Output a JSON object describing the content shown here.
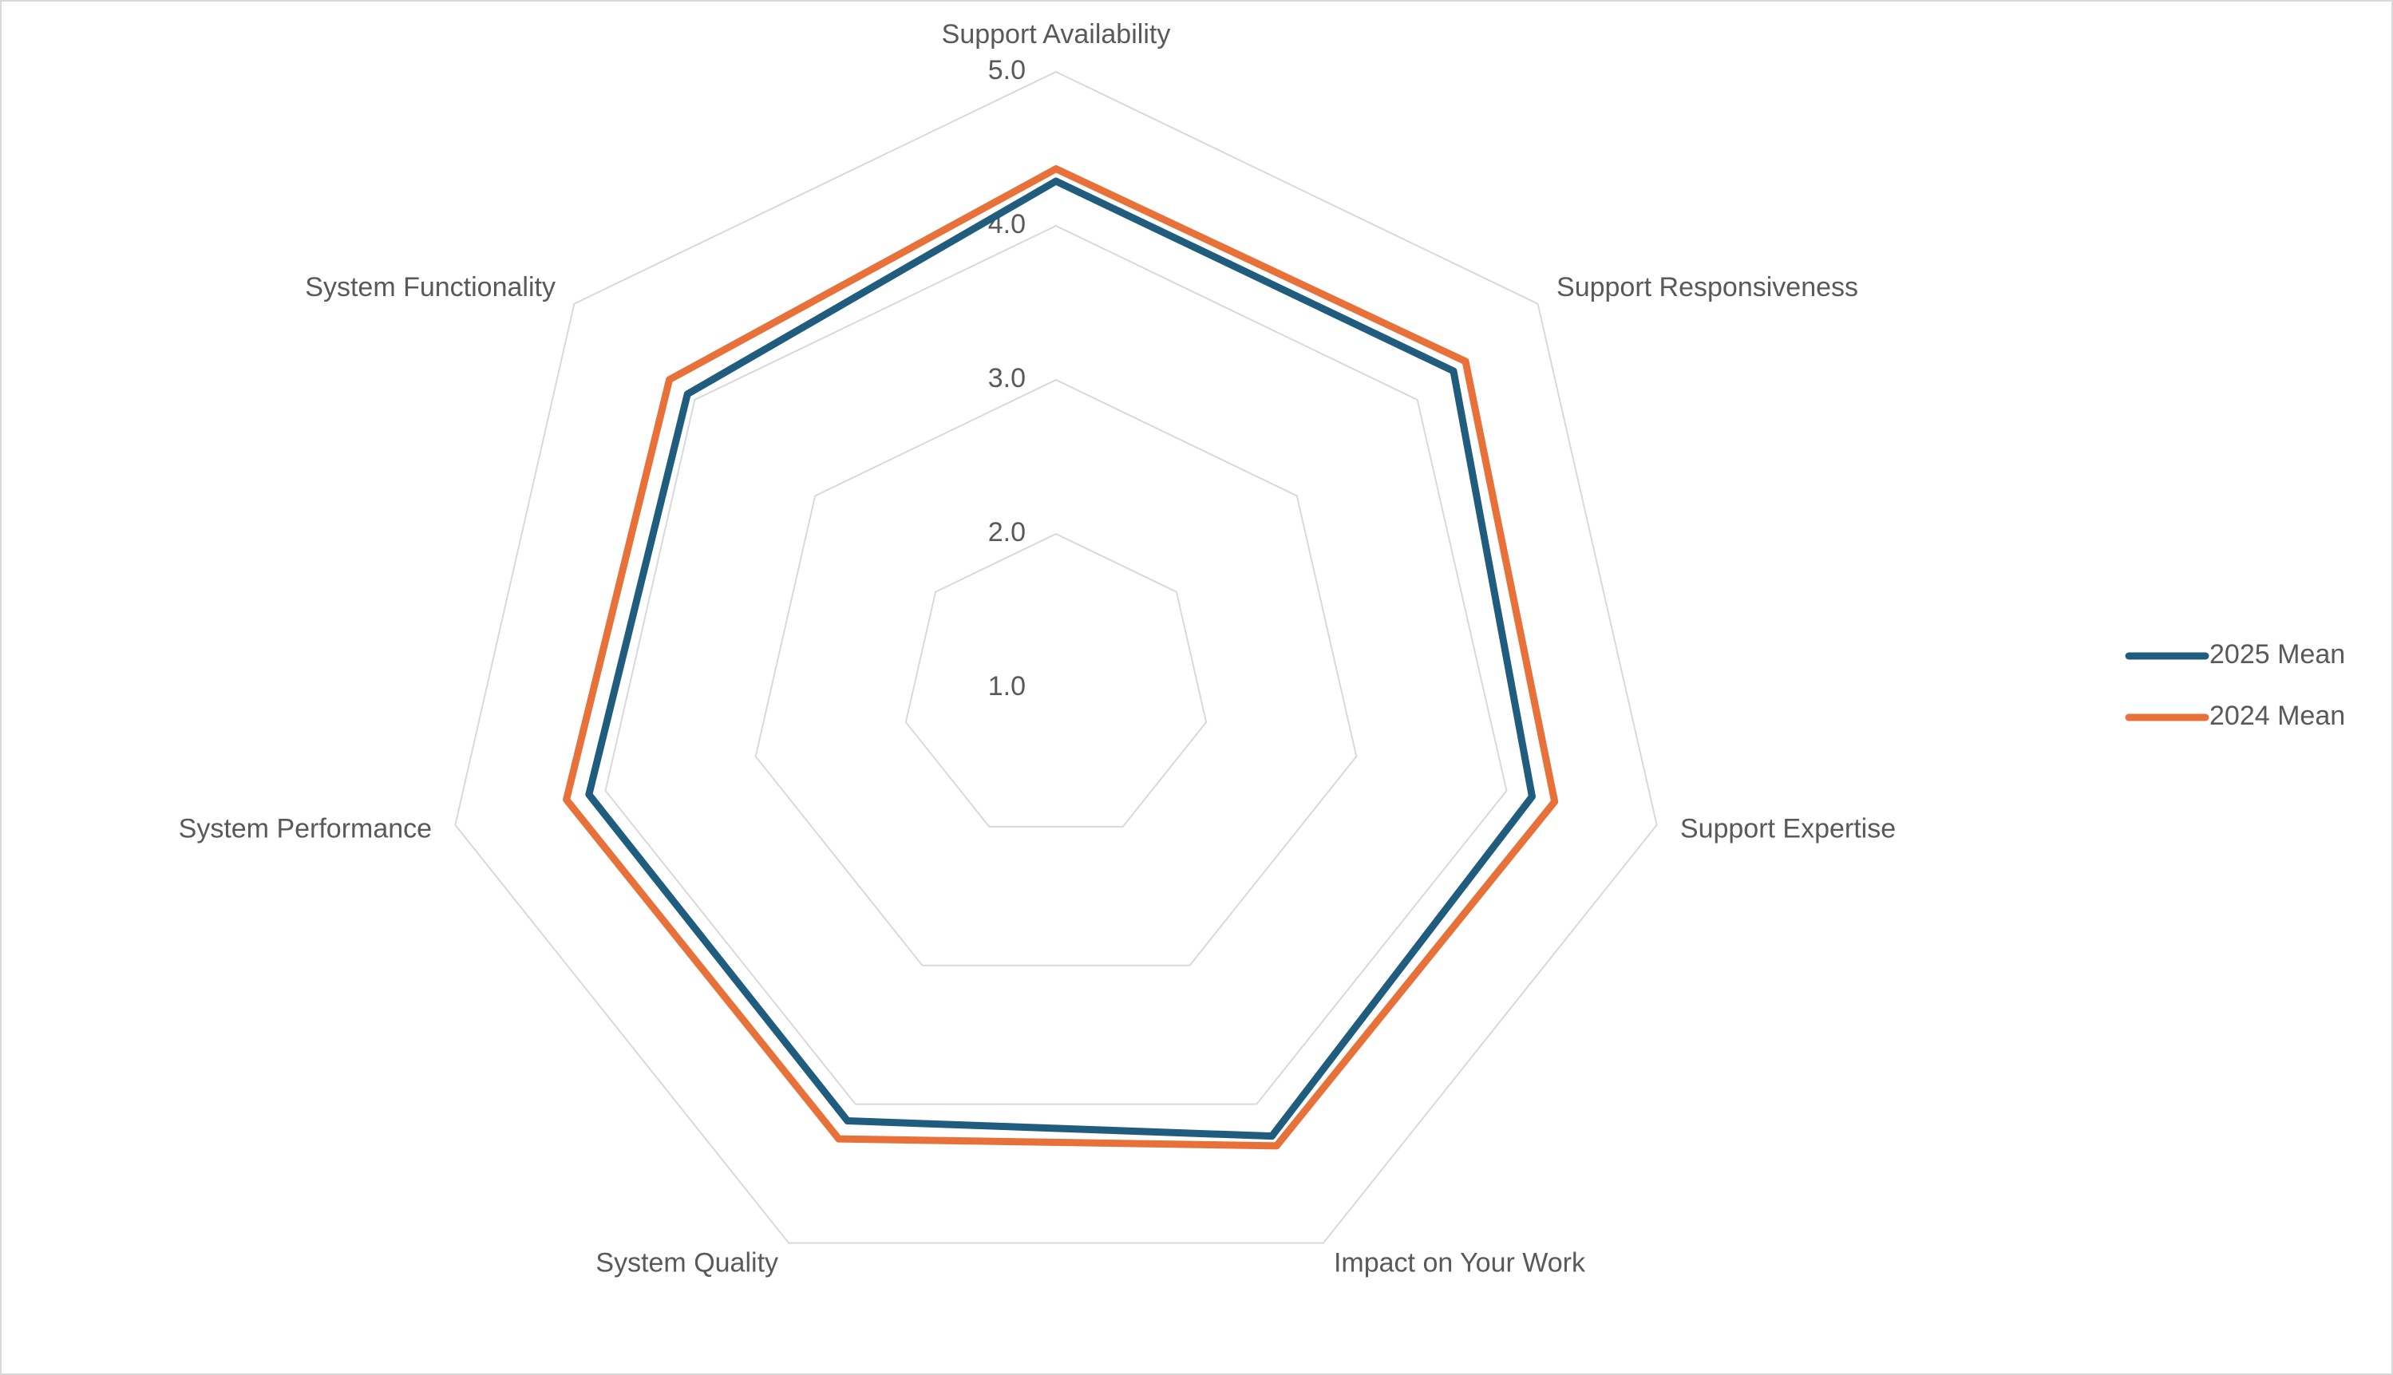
{
  "chart_data": {
    "type": "radar",
    "categories": [
      "Support Availability",
      "Support Responsiveness",
      "Support Expertise",
      "Impact on Your Work",
      "System Quality",
      "System Performance",
      "System Functionality"
    ],
    "series": [
      {
        "name": "2025 Mean",
        "color": "#1f5c7e",
        "values": [
          4.29,
          4.3,
          4.17,
          4.23,
          4.12,
          4.11,
          4.06
        ]
      },
      {
        "name": "2024 Mean",
        "color": "#e8713a",
        "values": [
          4.37,
          4.4,
          4.32,
          4.3,
          4.25,
          4.26,
          4.21
        ]
      }
    ],
    "rlim": [
      1,
      5
    ],
    "rticks": [
      {
        "value": 1,
        "label": "1.0"
      },
      {
        "value": 2,
        "label": "2.0"
      },
      {
        "value": 3,
        "label": "3.0"
      },
      {
        "value": 4,
        "label": "4.0"
      },
      {
        "value": 5,
        "label": "5.0"
      }
    ],
    "grid": true,
    "legend": "right"
  }
}
